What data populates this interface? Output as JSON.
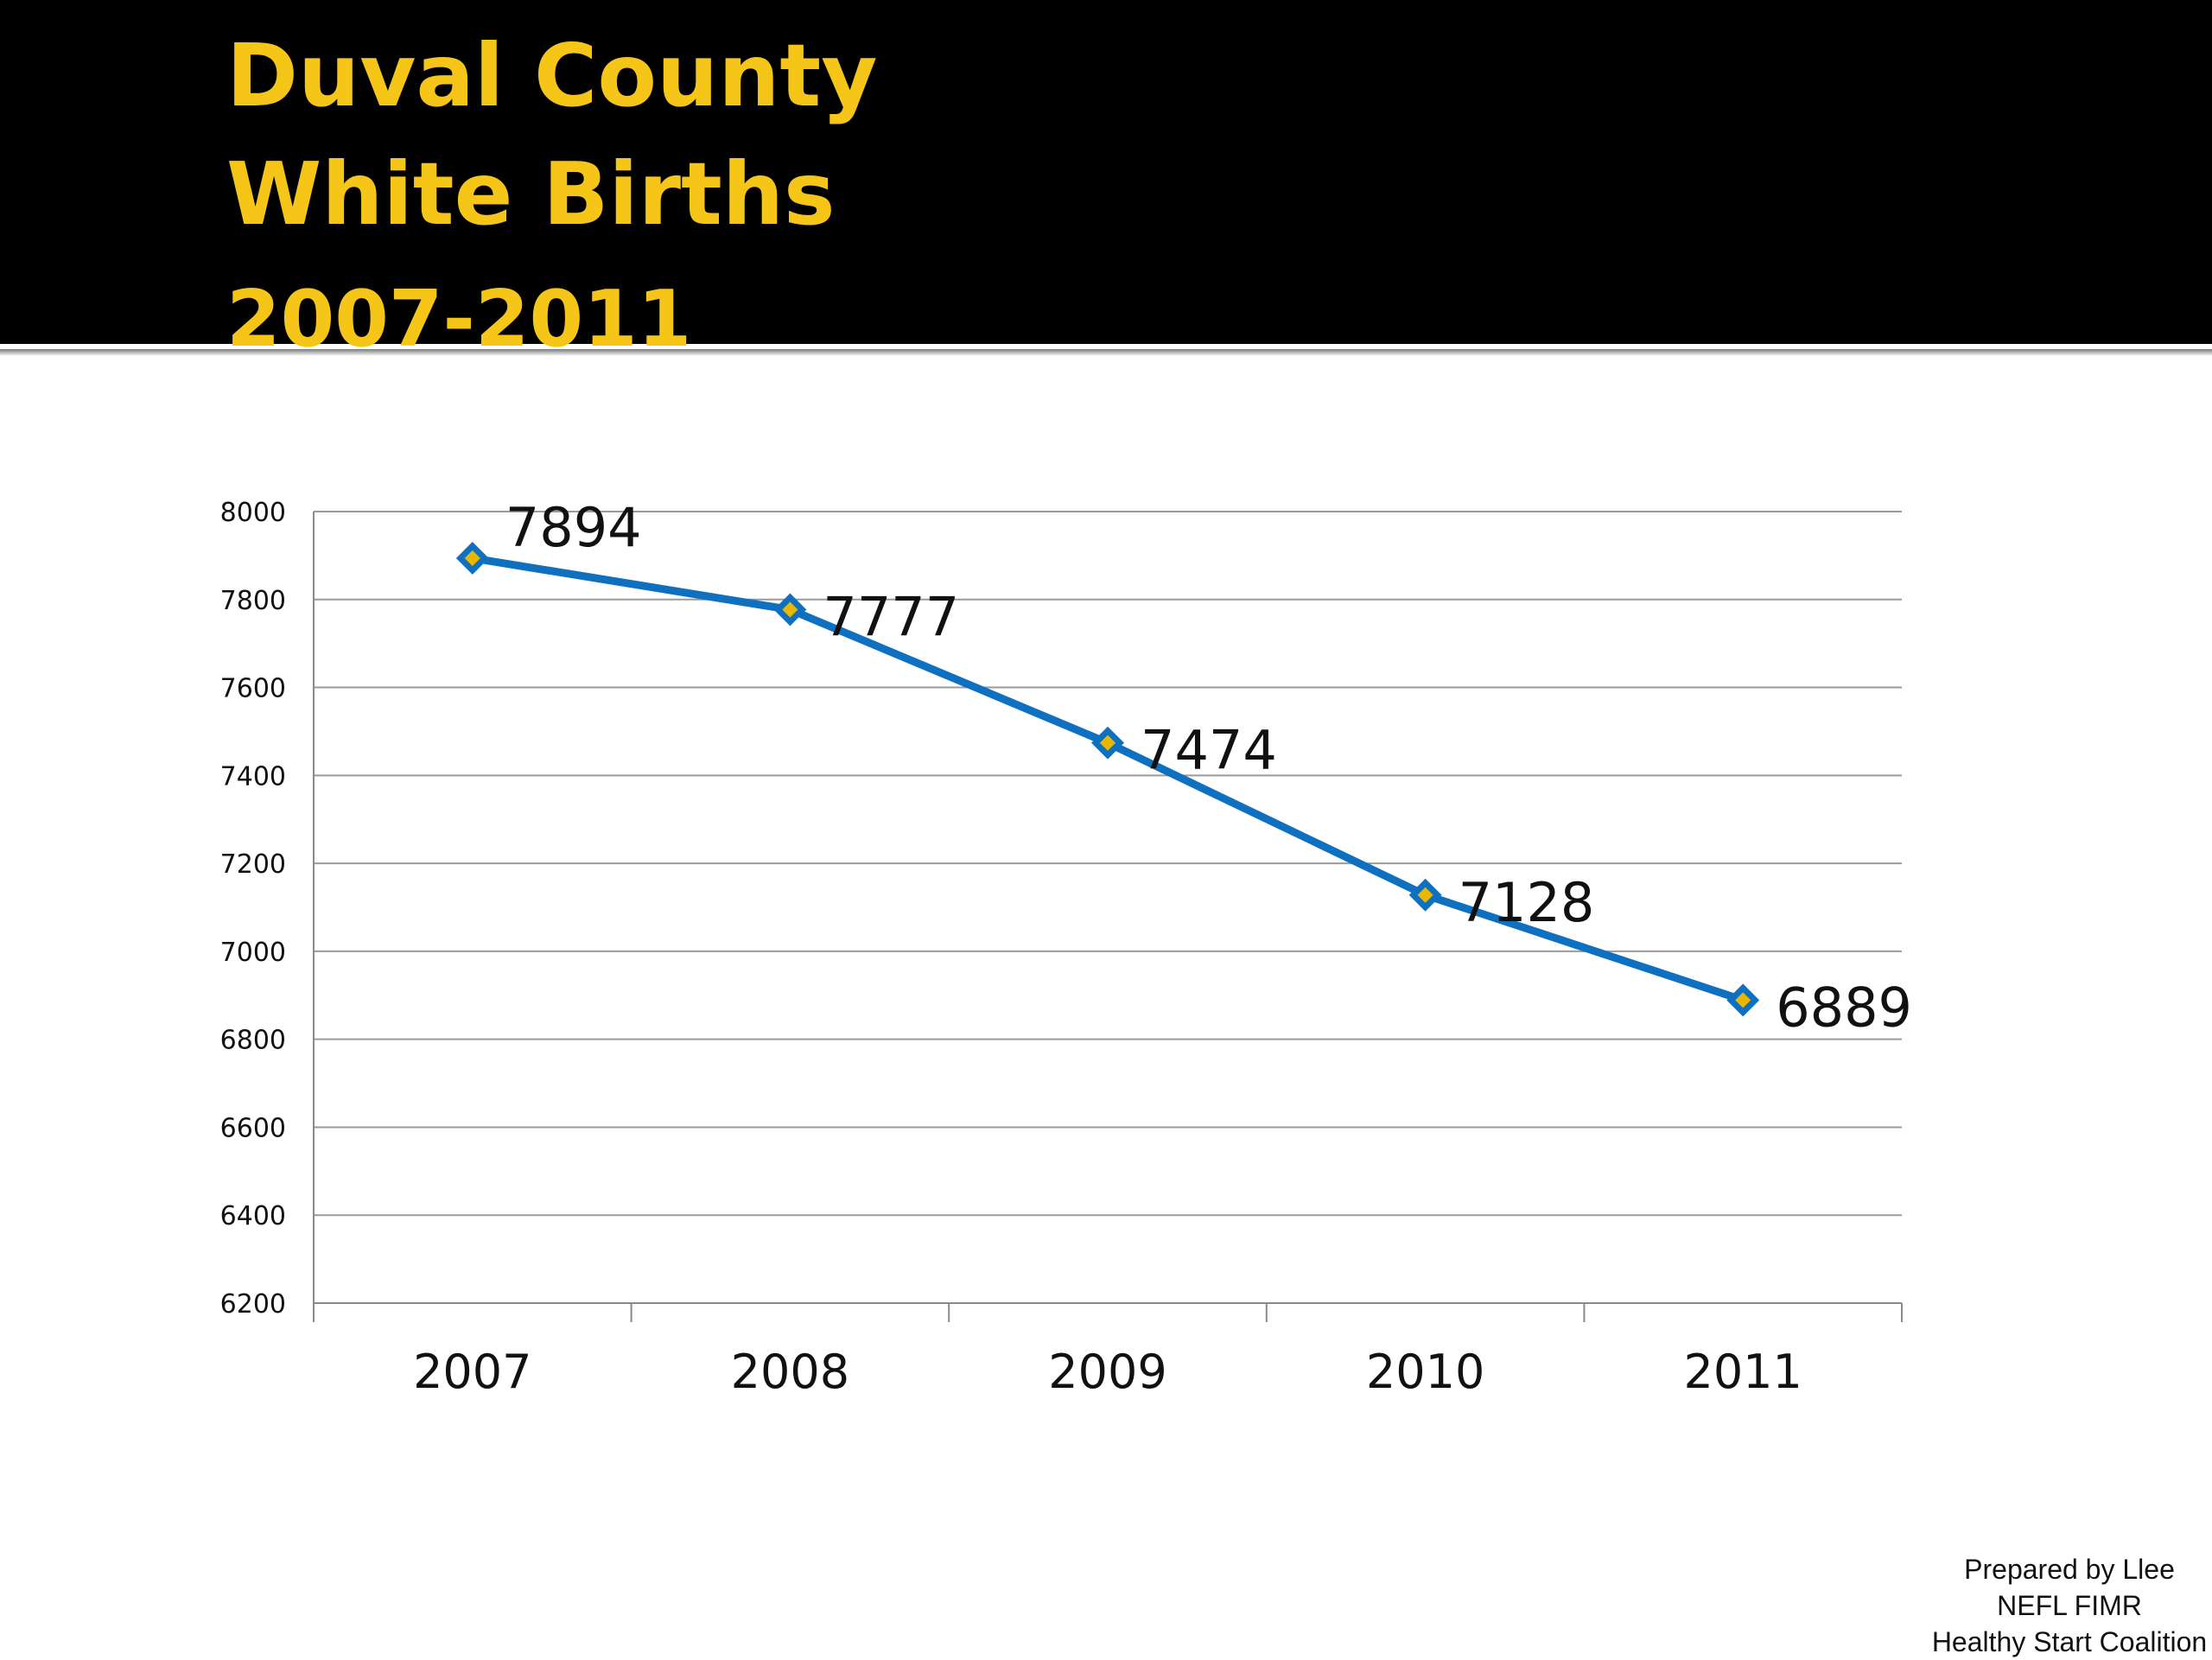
{
  "slide": {
    "title_line1": "Duval County",
    "title_line2": "White Births",
    "title_line3": "2007-2011",
    "colors": {
      "header_bg": "#000000",
      "title": "#f5c518",
      "series_line": "#1070c0",
      "marker_fill": "#e8b800"
    }
  },
  "footer": {
    "line1": "Prepared by Llee",
    "line2": "NEFL FIMR",
    "line3": "Healthy Start Coalition"
  },
  "chart_data": {
    "type": "line",
    "title": "",
    "xlabel": "",
    "ylabel": "",
    "categories": [
      "2007",
      "2008",
      "2009",
      "2010",
      "2011"
    ],
    "series": [
      {
        "values": [
          7894,
          7777,
          7474,
          7128,
          6889
        ]
      }
    ],
    "data_labels": [
      "7894",
      "7777",
      "7474",
      "7128",
      "6889"
    ],
    "ylim": [
      6200,
      8000
    ],
    "yticks": [
      6200,
      6400,
      6600,
      6800,
      7000,
      7200,
      7400,
      7600,
      7800,
      8000
    ],
    "grid": true,
    "legend": "none",
    "marker": "diamond"
  }
}
